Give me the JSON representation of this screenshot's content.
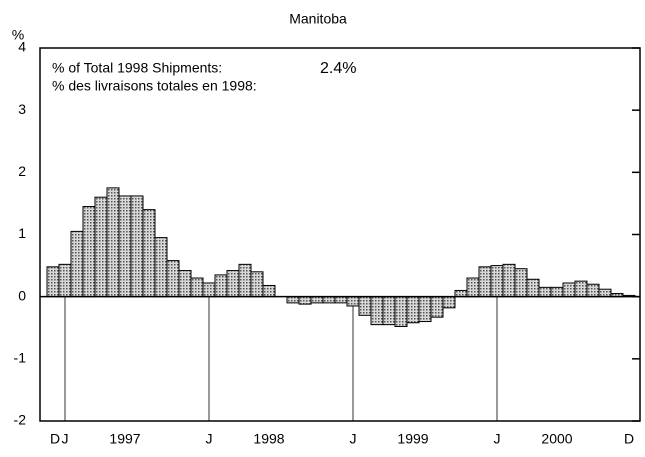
{
  "chart_data": {
    "type": "bar",
    "title": "Manitoba",
    "ylabel": "%",
    "annotations": [
      "% of Total 1998 Shipments:",
      "2.4%",
      "% des livraisons totales en 1998:"
    ],
    "categories": [
      "D",
      "J",
      null,
      null,
      null,
      null,
      null,
      null,
      null,
      null,
      null,
      null,
      null,
      "J",
      null,
      null,
      null,
      null,
      null,
      null,
      null,
      null,
      null,
      null,
      null,
      "J",
      null,
      null,
      null,
      null,
      null,
      null,
      null,
      null,
      null,
      null,
      null,
      "J",
      null,
      null,
      null,
      null,
      null,
      null,
      null,
      null,
      null,
      null,
      "D"
    ],
    "year_labels": [
      "1997",
      "1998",
      "1999",
      "2000"
    ],
    "values": [
      0.48,
      0.52,
      1.05,
      1.45,
      1.6,
      1.75,
      1.62,
      1.62,
      1.4,
      0.95,
      0.58,
      0.42,
      0.3,
      0.22,
      0.35,
      0.42,
      0.52,
      0.4,
      0.18,
      0.0,
      -0.1,
      -0.12,
      -0.1,
      -0.1,
      -0.1,
      -0.15,
      -0.3,
      -0.45,
      -0.45,
      -0.48,
      -0.42,
      -0.4,
      -0.33,
      -0.18,
      0.1,
      0.3,
      0.48,
      0.5,
      0.52,
      0.45,
      0.28,
      0.15,
      0.15,
      0.22,
      0.25,
      0.2,
      0.12,
      0.05,
      0.02
    ],
    "color": "#a8a8a8",
    "ylim": [
      -2,
      4
    ],
    "yticks": [
      -2,
      -1,
      0,
      1,
      2,
      3,
      4
    ]
  }
}
